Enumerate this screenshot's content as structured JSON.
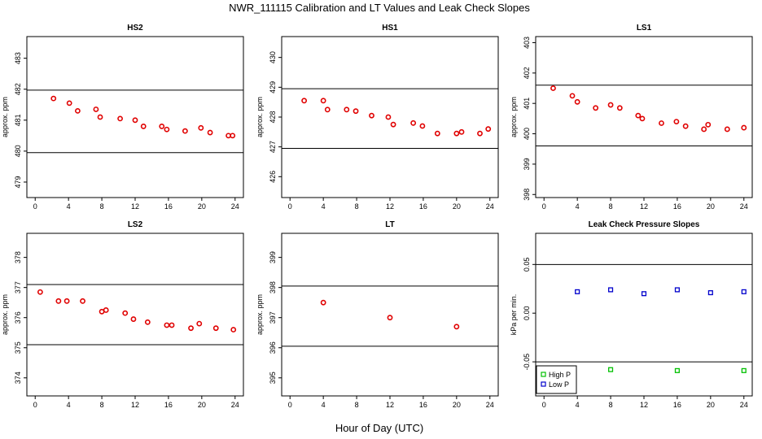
{
  "figure": {
    "title": "NWR_111115  Calibration and LT Values and Leak Check Slopes",
    "xlabel": "Hour of Day (UTC)"
  },
  "chart_data": [
    {
      "type": "scatter",
      "title": "HS2",
      "ylabel": "approx. ppm",
      "xlim": [
        -1,
        25
      ],
      "ylim": [
        478.5,
        483.7
      ],
      "xticks": [
        0,
        4,
        8,
        12,
        16,
        20,
        24
      ],
      "yticks": [
        479,
        480,
        481,
        482,
        483
      ],
      "hlines": [
        481.97,
        479.95
      ],
      "series": [
        {
          "color": "#e00000",
          "x": [
            2.2,
            4.1,
            5.1,
            7.3,
            7.8,
            10.2,
            12.0,
            13.0,
            15.2,
            15.8,
            18.0,
            19.9,
            21.0,
            23.2,
            23.7
          ],
          "y": [
            481.7,
            481.55,
            481.3,
            481.35,
            481.1,
            481.05,
            481.0,
            480.8,
            480.8,
            480.7,
            480.65,
            480.75,
            480.6,
            480.5,
            480.5
          ]
        }
      ]
    },
    {
      "type": "scatter",
      "title": "HS1",
      "ylabel": "approx. ppm",
      "xlim": [
        -1,
        25
      ],
      "ylim": [
        425.3,
        430.7
      ],
      "xticks": [
        0,
        4,
        8,
        12,
        16,
        20,
        24
      ],
      "yticks": [
        426,
        427,
        428,
        429,
        430
      ],
      "hlines": [
        428.95,
        426.95
      ],
      "series": [
        {
          "color": "#e00000",
          "x": [
            1.7,
            4.0,
            4.5,
            6.8,
            7.9,
            9.8,
            11.8,
            12.4,
            14.8,
            15.9,
            17.7,
            20.0,
            20.6,
            22.8,
            23.8
          ],
          "y": [
            428.55,
            428.55,
            428.25,
            428.25,
            428.2,
            428.05,
            428.0,
            427.75,
            427.8,
            427.7,
            427.45,
            427.45,
            427.5,
            427.45,
            427.6
          ]
        }
      ]
    },
    {
      "type": "scatter",
      "title": "LS1",
      "ylabel": "approx. ppm",
      "xlim": [
        -1,
        25
      ],
      "ylim": [
        397.9,
        403.2
      ],
      "xticks": [
        0,
        4,
        8,
        12,
        16,
        20,
        24
      ],
      "yticks": [
        398,
        399,
        400,
        401,
        402,
        403
      ],
      "hlines": [
        401.6,
        399.6
      ],
      "series": [
        {
          "color": "#e00000",
          "x": [
            1.1,
            3.4,
            4.0,
            6.2,
            8.0,
            9.1,
            11.3,
            11.8,
            14.1,
            15.9,
            17.0,
            19.2,
            19.7,
            22.0,
            24.0
          ],
          "y": [
            401.5,
            401.25,
            401.05,
            400.85,
            400.95,
            400.85,
            400.6,
            400.5,
            400.35,
            400.4,
            400.25,
            400.15,
            400.3,
            400.15,
            400.2
          ]
        }
      ]
    },
    {
      "type": "scatter",
      "title": "LS2",
      "ylabel": "approx. ppm",
      "xlim": [
        -1,
        25
      ],
      "ylim": [
        373.4,
        378.8
      ],
      "xticks": [
        0,
        4,
        8,
        12,
        16,
        20,
        24
      ],
      "yticks": [
        374,
        375,
        376,
        377,
        378
      ],
      "hlines": [
        377.1,
        375.1
      ],
      "series": [
        {
          "color": "#e00000",
          "x": [
            0.6,
            2.8,
            3.8,
            5.7,
            8.0,
            8.5,
            10.8,
            11.8,
            13.5,
            15.8,
            16.4,
            18.7,
            19.7,
            21.7,
            23.8
          ],
          "y": [
            376.85,
            376.55,
            376.55,
            376.55,
            376.2,
            376.25,
            376.15,
            375.95,
            375.85,
            375.75,
            375.75,
            375.65,
            375.8,
            375.65,
            375.6
          ]
        }
      ]
    },
    {
      "type": "scatter",
      "title": "LT",
      "ylabel": "approx. ppm",
      "xlim": [
        -1,
        25
      ],
      "ylim": [
        394.4,
        399.8
      ],
      "xticks": [
        0,
        4,
        8,
        12,
        16,
        20,
        24
      ],
      "yticks": [
        395,
        396,
        397,
        398,
        399
      ],
      "hlines": [
        398.05,
        396.05
      ],
      "series": [
        {
          "color": "#e00000",
          "x": [
            4.0,
            12.0,
            20.0
          ],
          "y": [
            397.5,
            397.0,
            396.7
          ]
        }
      ]
    },
    {
      "type": "scatter",
      "title": "Leak Check Pressure Slopes",
      "ylabel": "kPa per min.",
      "xlim": [
        -1,
        25
      ],
      "ylim": [
        -0.085,
        0.082
      ],
      "xticks": [
        0,
        4,
        8,
        12,
        16,
        20,
        24
      ],
      "yticks": [
        -0.05,
        0.0,
        0.05
      ],
      "ytick_labels": [
        "-0.05",
        "0.00",
        "0.05"
      ],
      "hlines": [
        0.05,
        -0.05
      ],
      "legend": {
        "position": "bottom-left",
        "entries": [
          "High P",
          "Low P"
        ]
      },
      "series": [
        {
          "name": "High P",
          "color": "#00c000",
          "x": [
            8.0,
            16.0,
            24.0
          ],
          "y": [
            -0.058,
            -0.059,
            -0.059
          ]
        },
        {
          "name": "Low P",
          "color": "#0000cc",
          "x": [
            4.0,
            8.0,
            12.0,
            16.0,
            20.0,
            24.0
          ],
          "y": [
            0.022,
            0.024,
            0.02,
            0.024,
            0.021,
            0.022
          ]
        }
      ]
    }
  ]
}
